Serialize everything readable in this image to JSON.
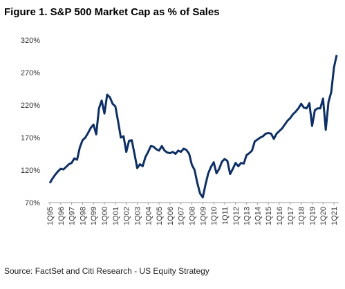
{
  "chart_data": {
    "type": "line",
    "title": "Figure 1. S&P 500 Market Cap as % of Sales",
    "source": "Source: FactSet and Citi Research - US Equity Strategy",
    "categories": [
      "1Q95",
      null,
      null,
      null,
      "1Q96",
      null,
      null,
      null,
      "1Q97",
      null,
      null,
      null,
      "1Q98",
      null,
      null,
      null,
      "1Q99",
      null,
      null,
      null,
      "1Q00",
      null,
      null,
      null,
      "1Q01",
      null,
      null,
      null,
      "1Q02",
      null,
      null,
      null,
      "1Q03",
      null,
      null,
      null,
      "1Q04",
      null,
      null,
      null,
      "1Q05",
      null,
      null,
      null,
      "1Q06",
      null,
      null,
      null,
      "1Q07",
      null,
      null,
      null,
      "1Q08",
      null,
      null,
      null,
      "1Q09",
      null,
      null,
      null,
      "1Q10",
      null,
      null,
      null,
      "1Q11",
      null,
      null,
      null,
      "1Q12",
      null,
      null,
      null,
      "1Q13",
      null,
      null,
      null,
      "1Q14",
      null,
      null,
      null,
      "1Q15",
      null,
      null,
      null,
      "1Q16",
      null,
      null,
      null,
      "1Q17",
      null,
      null,
      null,
      "1Q18",
      null,
      null,
      null,
      "1Q19",
      null,
      null,
      null,
      "1Q20",
      null,
      null,
      null,
      "1Q21",
      null
    ],
    "values": [
      100,
      107,
      113,
      118,
      122,
      121,
      125,
      129,
      131,
      138,
      136,
      155,
      166,
      170,
      177,
      185,
      190,
      175,
      215,
      227,
      207,
      236,
      232,
      222,
      218,
      195,
      170,
      172,
      148,
      165,
      166,
      145,
      123,
      129,
      126,
      140,
      148,
      157,
      156,
      152,
      150,
      157,
      150,
      147,
      146,
      148,
      145,
      150,
      148,
      153,
      151,
      145,
      128,
      120,
      100,
      84,
      78,
      98,
      115,
      125,
      132,
      115,
      122,
      133,
      137,
      134,
      114,
      122,
      131,
      126,
      131,
      130,
      143,
      146,
      150,
      164,
      167,
      170,
      172,
      176,
      177,
      176,
      168,
      176,
      180,
      184,
      190,
      196,
      200,
      206,
      210,
      215,
      222,
      216,
      215,
      223,
      188,
      212,
      215,
      215,
      230,
      182,
      225,
      240,
      278,
      297
    ],
    "color": "#0b2f6b",
    "ylim": [
      70,
      320
    ],
    "yticks": [
      {
        "value": 70,
        "label": "70%"
      },
      {
        "value": 120,
        "label": "120%"
      },
      {
        "value": 170,
        "label": "170%"
      },
      {
        "value": 220,
        "label": "220%"
      },
      {
        "value": 270,
        "label": "270%"
      },
      {
        "value": 320,
        "label": "320%"
      }
    ],
    "grid": false
  }
}
